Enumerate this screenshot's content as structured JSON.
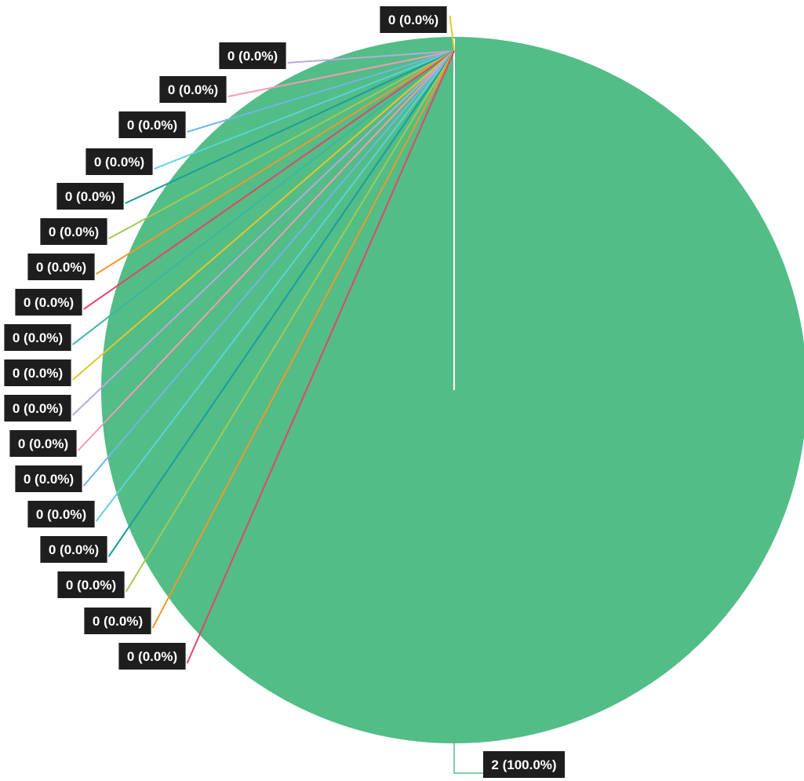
{
  "chart_data": {
    "type": "pie",
    "title": "",
    "start_angle_deg": 0,
    "direction": "counterclockwise-for-zero-slices",
    "slices": [
      {
        "value": 0,
        "label": "0 (0.0%)",
        "color": "#e8c52a"
      },
      {
        "value": 0,
        "label": "0 (0.0%)",
        "color": "#b9a9dc"
      },
      {
        "value": 0,
        "label": "0 (0.0%)",
        "color": "#f39bb4"
      },
      {
        "value": 0,
        "label": "0 (0.0%)",
        "color": "#6fb6e8"
      },
      {
        "value": 0,
        "label": "0 (0.0%)",
        "color": "#5fd0dc"
      },
      {
        "value": 0,
        "label": "0 (0.0%)",
        "color": "#1c9ca0"
      },
      {
        "value": 0,
        "label": "0 (0.0%)",
        "color": "#a3c957"
      },
      {
        "value": 0,
        "label": "0 (0.0%)",
        "color": "#f2982a"
      },
      {
        "value": 0,
        "label": "0 (0.0%)",
        "color": "#e2456a"
      },
      {
        "value": 0,
        "label": "0 (0.0%)",
        "color": "#3bb6a0"
      },
      {
        "value": 0,
        "label": "0 (0.0%)",
        "color": "#e8c52a"
      },
      {
        "value": 0,
        "label": "0 (0.0%)",
        "color": "#b9a9dc"
      },
      {
        "value": 0,
        "label": "0 (0.0%)",
        "color": "#f39bb4"
      },
      {
        "value": 0,
        "label": "0 (0.0%)",
        "color": "#6fb6e8"
      },
      {
        "value": 0,
        "label": "0 (0.0%)",
        "color": "#5fd0dc"
      },
      {
        "value": 0,
        "label": "0 (0.0%)",
        "color": "#1c9ca0"
      },
      {
        "value": 0,
        "label": "0 (0.0%)",
        "color": "#a3c957"
      },
      {
        "value": 0,
        "label": "0 (0.0%)",
        "color": "#f2982a"
      },
      {
        "value": 0,
        "label": "0 (0.0%)",
        "color": "#e2456a"
      },
      {
        "value": 2,
        "label": "2 (100.0%)",
        "color": "#52bd86"
      }
    ]
  }
}
